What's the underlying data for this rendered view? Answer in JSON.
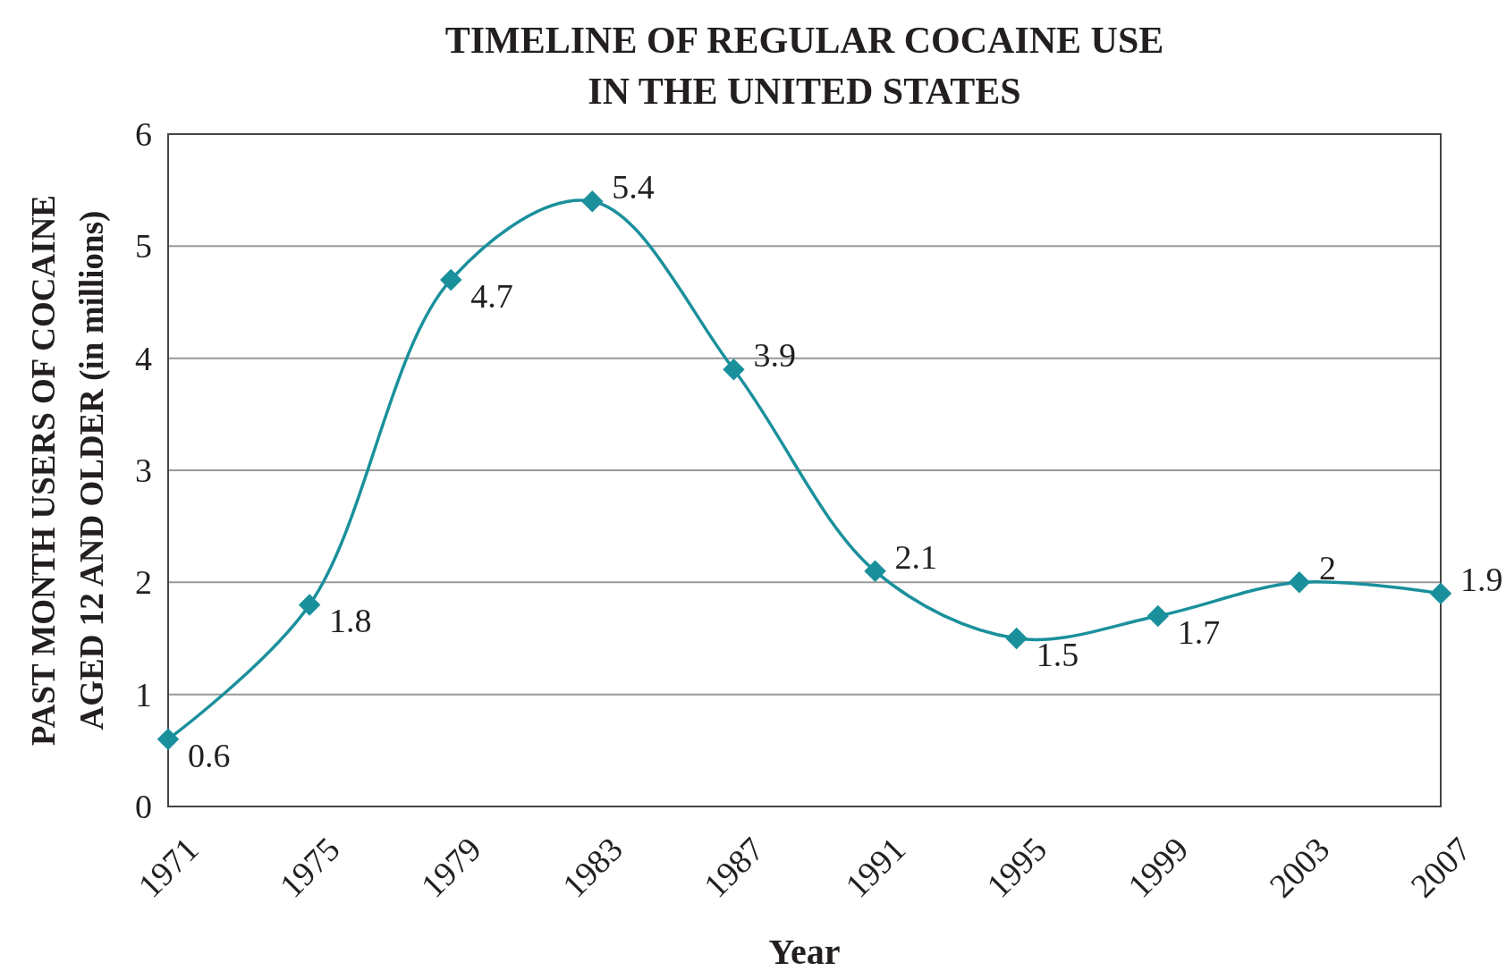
{
  "chart_data": {
    "type": "line",
    "title": "TIMELINE OF REGULAR COCAINE USE\nIN THE UNITED STATES",
    "xlabel": "Year",
    "ylabel": "PAST MONTH USERS OF COCAINE\nAGED 12 AND OLDER (in millions)",
    "categories": [
      "1971",
      "1975",
      "1979",
      "1983",
      "1987",
      "1991",
      "1995",
      "1999",
      "2003",
      "2007"
    ],
    "values": [
      0.6,
      1.8,
      4.7,
      5.4,
      3.9,
      2.1,
      1.5,
      1.7,
      2,
      1.9
    ],
    "color": "#1a909c",
    "ylim": [
      0,
      6
    ],
    "yticks": [
      0,
      1,
      2,
      3,
      4,
      5,
      6
    ],
    "grid": "y",
    "marker": "diamond",
    "line_style": "solid",
    "data_labels": true
  }
}
